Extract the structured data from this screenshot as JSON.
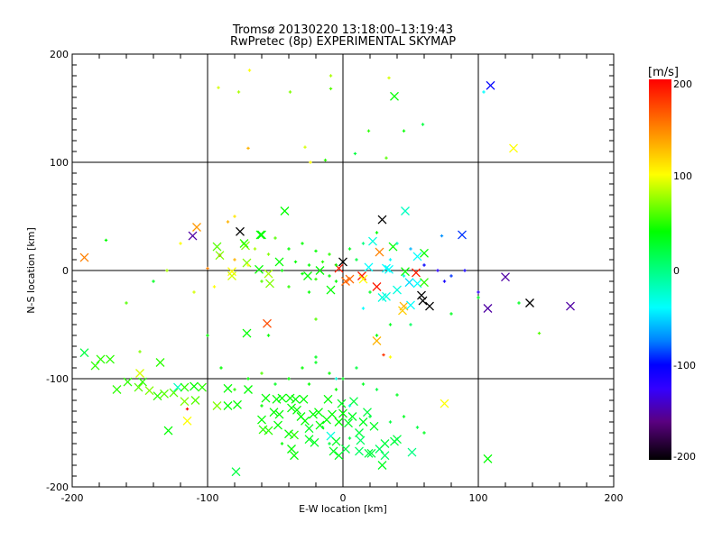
{
  "chart_data": {
    "type": "scatter",
    "title": "Tromsø 20130220 13:18:00–13:19:43",
    "subtitle": "RwPretec (8p) EXPERIMENTAL SKYMAP",
    "xlabel": "E-W location [km]",
    "ylabel": "N-S location [km]",
    "xlim": [
      -200,
      200
    ],
    "ylim": [
      -200,
      200
    ],
    "xticks": [
      "-200",
      "-100",
      "0",
      "100",
      "200"
    ],
    "yticks": [
      "-200",
      "-100",
      "0",
      "100",
      "200"
    ],
    "grid": true,
    "colorbar": {
      "label": "[m/s]",
      "range": [
        -200,
        200
      ],
      "ticks": [
        "200",
        "100",
        "0",
        "-100",
        "-200"
      ],
      "stops": [
        [
          -200,
          "#000000"
        ],
        [
          -160,
          "#5a0080"
        ],
        [
          -125,
          "#3300ff"
        ],
        [
          -100,
          "#0000ff"
        ],
        [
          -75,
          "#0080ff"
        ],
        [
          -40,
          "#00ffff"
        ],
        [
          0,
          "#00ff80"
        ],
        [
          40,
          "#00ff00"
        ],
        [
          70,
          "#80ff00"
        ],
        [
          100,
          "#ffff00"
        ],
        [
          150,
          "#ff8000"
        ],
        [
          200,
          "#ff0000"
        ]
      ]
    },
    "point_format": [
      "x_km",
      "y_km",
      "velocity_ms",
      "large_marker"
    ],
    "points": [
      [
        -191,
        12,
        150,
        1
      ],
      [
        -111,
        32,
        -150,
        1
      ],
      [
        -108,
        40,
        140,
        1
      ],
      [
        -76,
        36,
        -200,
        1
      ],
      [
        -91,
        14,
        190,
        0
      ],
      [
        -60,
        33,
        40,
        1
      ],
      [
        -43,
        55,
        40,
        1
      ],
      [
        -72,
        23,
        70,
        1
      ],
      [
        -71,
        7,
        70,
        1
      ],
      [
        -56,
        -49,
        170,
        1
      ],
      [
        -71,
        -58,
        40,
        1
      ],
      [
        29,
        47,
        -200,
        1
      ],
      [
        46,
        55,
        -20,
        1
      ],
      [
        0,
        8,
        -200,
        1
      ],
      [
        -3,
        2,
        190,
        1
      ],
      [
        5,
        -8,
        160,
        1
      ],
      [
        14,
        -5,
        190,
        1
      ],
      [
        25,
        -15,
        190,
        1
      ],
      [
        32,
        2,
        -40,
        1
      ],
      [
        55,
        13,
        -40,
        1
      ],
      [
        73,
        32,
        -70,
        0
      ],
      [
        88,
        33,
        -90,
        1
      ],
      [
        54,
        -2,
        190,
        1
      ],
      [
        55,
        -12,
        -40,
        1
      ],
      [
        58,
        -23,
        -200,
        1
      ],
      [
        59,
        -28,
        -200,
        1
      ],
      [
        64,
        -33,
        -200,
        1
      ],
      [
        45,
        -33,
        130,
        1
      ],
      [
        50,
        -32,
        -40,
        1
      ],
      [
        120,
        -6,
        -150,
        1
      ],
      [
        138,
        -30,
        -200,
        1
      ],
      [
        168,
        -33,
        -150,
        1
      ],
      [
        107,
        -35,
        -150,
        1
      ],
      [
        109,
        171,
        -100,
        1
      ],
      [
        126,
        113,
        100,
        1
      ],
      [
        38,
        161,
        40,
        1
      ],
      [
        107,
        -174,
        40,
        1
      ],
      [
        75,
        -123,
        100,
        1
      ],
      [
        25,
        -65,
        130,
        1
      ],
      [
        -61,
        33,
        40,
        1
      ],
      [
        -93,
        22,
        60,
        1
      ],
      [
        -91,
        14,
        70,
        1
      ],
      [
        -73,
        25,
        50,
        1
      ],
      [
        -62,
        1,
        40,
        1
      ],
      [
        -82,
        -1,
        100,
        1
      ],
      [
        -82,
        -5,
        90,
        1
      ],
      [
        -55,
        -3,
        80,
        1
      ],
      [
        -54,
        -12,
        70,
        1
      ],
      [
        -47,
        8,
        40,
        1
      ],
      [
        -26,
        -5,
        40,
        1
      ],
      [
        -17,
        0,
        40,
        1
      ],
      [
        -9,
        -18,
        40,
        1
      ],
      [
        2,
        -10,
        160,
        1
      ],
      [
        15,
        -8,
        100,
        1
      ],
      [
        22,
        27,
        -30,
        1
      ],
      [
        27,
        17,
        150,
        1
      ],
      [
        37,
        22,
        40,
        1
      ],
      [
        19,
        3,
        -40,
        1
      ],
      [
        34,
        1,
        -40,
        1
      ],
      [
        46,
        -1,
        40,
        1
      ],
      [
        60,
        16,
        40,
        1
      ],
      [
        49,
        -11,
        -50,
        1
      ],
      [
        60,
        -11,
        50,
        1
      ],
      [
        40,
        -18,
        -30,
        1
      ],
      [
        32,
        -24,
        -30,
        1
      ],
      [
        29,
        -25,
        -30,
        1
      ],
      [
        44,
        -37,
        120,
        1
      ],
      [
        -191,
        -76,
        20,
        1
      ],
      [
        -183,
        -88,
        50,
        1
      ],
      [
        -179,
        -82,
        50,
        1
      ],
      [
        -172,
        -82,
        50,
        1
      ],
      [
        -167,
        -110,
        50,
        1
      ],
      [
        -159,
        -103,
        50,
        1
      ],
      [
        -151,
        -108,
        60,
        1
      ],
      [
        -148,
        -103,
        50,
        1
      ],
      [
        -143,
        -111,
        70,
        1
      ],
      [
        -150,
        -95,
        90,
        1
      ],
      [
        -135,
        -85,
        50,
        1
      ],
      [
        -137,
        -116,
        50,
        1
      ],
      [
        -132,
        -114,
        60,
        1
      ],
      [
        -125,
        -113,
        60,
        1
      ],
      [
        -122,
        -108,
        -20,
        1
      ],
      [
        -117,
        -108,
        50,
        1
      ],
      [
        -110,
        -107,
        40,
        1
      ],
      [
        -104,
        -108,
        50,
        1
      ],
      [
        -117,
        -121,
        70,
        1
      ],
      [
        -109,
        -120,
        60,
        1
      ],
      [
        -115,
        -139,
        100,
        1
      ],
      [
        -129,
        -148,
        40,
        1
      ],
      [
        -93,
        -125,
        70,
        1
      ],
      [
        -85,
        -109,
        40,
        1
      ],
      [
        -85,
        -125,
        40,
        1
      ],
      [
        -78,
        -124,
        40,
        1
      ],
      [
        -79,
        -186,
        20,
        1
      ],
      [
        -70,
        -110,
        40,
        1
      ],
      [
        -60,
        -138,
        40,
        1
      ],
      [
        -59,
        -147,
        50,
        1
      ],
      [
        -55,
        -148,
        50,
        1
      ],
      [
        -48,
        -143,
        40,
        1
      ],
      [
        -47,
        -133,
        40,
        1
      ],
      [
        -51,
        -131,
        40,
        1
      ],
      [
        -40,
        -151,
        40,
        1
      ],
      [
        -36,
        -152,
        50,
        1
      ],
      [
        -38,
        -165,
        40,
        1
      ],
      [
        -36,
        -171,
        40,
        1
      ],
      [
        -57,
        -118,
        40,
        1
      ],
      [
        -49,
        -119,
        40,
        1
      ],
      [
        -39,
        -118,
        40,
        1
      ],
      [
        -35,
        -119,
        40,
        1
      ],
      [
        -29,
        -119,
        40,
        1
      ],
      [
        -34,
        -129,
        40,
        1
      ],
      [
        -28,
        -139,
        40,
        1
      ],
      [
        -25,
        -146,
        30,
        1
      ],
      [
        -22,
        -133,
        40,
        1
      ],
      [
        -18,
        -131,
        40,
        1
      ],
      [
        -12,
        -138,
        40,
        1
      ],
      [
        -8,
        -133,
        40,
        1
      ],
      [
        -17,
        -143,
        40,
        1
      ],
      [
        -25,
        -156,
        30,
        1
      ],
      [
        -21,
        -159,
        30,
        1
      ],
      [
        -9,
        -153,
        -30,
        1
      ],
      [
        -5,
        -158,
        30,
        1
      ],
      [
        -7,
        -167,
        30,
        1
      ],
      [
        -3,
        -171,
        30,
        1
      ],
      [
        -3,
        -140,
        40,
        1
      ],
      [
        0,
        -132,
        40,
        1
      ],
      [
        2,
        -165,
        20,
        1
      ],
      [
        4,
        -141,
        30,
        1
      ],
      [
        7,
        -135,
        30,
        1
      ],
      [
        12,
        -150,
        20,
        1
      ],
      [
        12,
        -167,
        10,
        1
      ],
      [
        19,
        -169,
        20,
        1
      ],
      [
        21,
        -169,
        20,
        1
      ],
      [
        23,
        -144,
        30,
        1
      ],
      [
        15,
        -140,
        30,
        1
      ],
      [
        27,
        -165,
        10,
        1
      ],
      [
        31,
        -171,
        10,
        1
      ],
      [
        31,
        -160,
        20,
        1
      ],
      [
        38,
        -158,
        20,
        1
      ],
      [
        40,
        -156,
        20,
        1
      ],
      [
        51,
        -168,
        0,
        1
      ],
      [
        29,
        -180,
        30,
        1
      ],
      [
        13,
        -157,
        10,
        1
      ],
      [
        18,
        -131,
        20,
        1
      ],
      [
        8,
        -121,
        20,
        1
      ],
      [
        -1,
        -123,
        30,
        1
      ],
      [
        -11,
        -119,
        40,
        1
      ],
      [
        -45,
        -118,
        40,
        1
      ],
      [
        -38,
        -127,
        40,
        1
      ],
      [
        -31,
        -135,
        40,
        1
      ],
      [
        -92,
        169,
        90,
        0
      ],
      [
        -77,
        165,
        80,
        0
      ],
      [
        -69,
        185,
        100,
        0
      ],
      [
        -39,
        165,
        70,
        0
      ],
      [
        -9,
        168,
        60,
        0
      ],
      [
        -9,
        180,
        80,
        0
      ],
      [
        34,
        178,
        90,
        0
      ],
      [
        19,
        129,
        50,
        0
      ],
      [
        59,
        135,
        20,
        0
      ],
      [
        45,
        129,
        40,
        0
      ],
      [
        9,
        108,
        20,
        0
      ],
      [
        -28,
        114,
        90,
        0
      ],
      [
        -70,
        113,
        130,
        0
      ],
      [
        104,
        165,
        -40,
        0
      ],
      [
        -24,
        100,
        100,
        0
      ],
      [
        -13,
        102,
        50,
        0
      ],
      [
        32,
        104,
        60,
        0
      ],
      [
        -50,
        30,
        60,
        0
      ],
      [
        -40,
        20,
        40,
        0
      ],
      [
        -30,
        25,
        40,
        0
      ],
      [
        -20,
        18,
        40,
        0
      ],
      [
        -10,
        15,
        50,
        0
      ],
      [
        -35,
        8,
        40,
        0
      ],
      [
        -25,
        5,
        40,
        0
      ],
      [
        -15,
        8,
        50,
        0
      ],
      [
        -5,
        5,
        40,
        0
      ],
      [
        -45,
        0,
        40,
        0
      ],
      [
        -30,
        -3,
        40,
        0
      ],
      [
        -20,
        -8,
        50,
        0
      ],
      [
        -10,
        -5,
        40,
        0
      ],
      [
        -55,
        15,
        70,
        0
      ],
      [
        -65,
        20,
        80,
        0
      ],
      [
        -70,
        5,
        100,
        0
      ],
      [
        -80,
        10,
        130,
        0
      ],
      [
        -95,
        -15,
        100,
        0
      ],
      [
        -100,
        2,
        150,
        0
      ],
      [
        -60,
        -10,
        60,
        0
      ],
      [
        -40,
        -15,
        50,
        0
      ],
      [
        -25,
        -20,
        40,
        0
      ],
      [
        -5,
        -10,
        40,
        0
      ],
      [
        5,
        20,
        30,
        0
      ],
      [
        10,
        10,
        20,
        0
      ],
      [
        15,
        25,
        0,
        0
      ],
      [
        20,
        -20,
        30,
        0
      ],
      [
        25,
        35,
        40,
        0
      ],
      [
        35,
        10,
        -40,
        0
      ],
      [
        40,
        25,
        -20,
        0
      ],
      [
        45,
        -5,
        -30,
        0
      ],
      [
        50,
        20,
        -60,
        0
      ],
      [
        60,
        5,
        -100,
        0
      ],
      [
        70,
        0,
        -120,
        0
      ],
      [
        75,
        -10,
        -110,
        0
      ],
      [
        80,
        -5,
        -90,
        0
      ],
      [
        90,
        0,
        -110,
        0
      ],
      [
        100,
        -20,
        -120,
        0
      ],
      [
        -120,
        25,
        100,
        0
      ],
      [
        -140,
        -10,
        30,
        0
      ],
      [
        -160,
        -30,
        60,
        0
      ],
      [
        -110,
        -20,
        90,
        0
      ],
      [
        -130,
        0,
        80,
        0
      ],
      [
        -100,
        -60,
        40,
        0
      ],
      [
        -150,
        -75,
        70,
        0
      ],
      [
        -85,
        45,
        130,
        0
      ],
      [
        -80,
        50,
        110,
        0
      ],
      [
        -55,
        -60,
        40,
        0
      ],
      [
        -20,
        -45,
        60,
        0
      ],
      [
        15,
        -35,
        -40,
        0
      ],
      [
        25,
        -60,
        40,
        0
      ],
      [
        35,
        -50,
        30,
        0
      ],
      [
        50,
        -50,
        10,
        0
      ],
      [
        80,
        -40,
        30,
        0
      ],
      [
        100,
        -25,
        30,
        0
      ],
      [
        130,
        -30,
        30,
        0
      ],
      [
        145,
        -58,
        60,
        0
      ],
      [
        -115,
        -128,
        200,
        0
      ],
      [
        30,
        -78,
        180,
        0
      ],
      [
        -175,
        28,
        40,
        0
      ],
      [
        -30,
        -90,
        40,
        0
      ],
      [
        -20,
        -85,
        30,
        0
      ],
      [
        -10,
        -95,
        40,
        0
      ],
      [
        0,
        -100,
        30,
        0
      ],
      [
        10,
        -90,
        20,
        0
      ],
      [
        -40,
        -100,
        40,
        0
      ],
      [
        -50,
        -105,
        30,
        0
      ],
      [
        -25,
        -105,
        40,
        0
      ],
      [
        -5,
        -110,
        40,
        0
      ],
      [
        15,
        -105,
        30,
        0
      ],
      [
        25,
        -110,
        20,
        0
      ],
      [
        40,
        -115,
        30,
        0
      ],
      [
        -60,
        -95,
        60,
        0
      ],
      [
        -70,
        -100,
        40,
        0
      ],
      [
        -80,
        -110,
        50,
        0
      ],
      [
        -90,
        -90,
        40,
        0
      ],
      [
        20,
        -135,
        20,
        0
      ],
      [
        35,
        -140,
        20,
        0
      ],
      [
        45,
        -135,
        30,
        0
      ],
      [
        55,
        -145,
        20,
        0
      ],
      [
        60,
        -150,
        30,
        0
      ],
      [
        -15,
        -145,
        30,
        0
      ],
      [
        -10,
        -160,
        20,
        0
      ],
      [
        5,
        -155,
        20,
        0
      ],
      [
        -45,
        -160,
        40,
        0
      ],
      [
        -60,
        -125,
        40,
        0
      ],
      [
        5,
        -125,
        -30,
        0
      ],
      [
        -5,
        -100,
        -30,
        0
      ],
      [
        35,
        -80,
        100,
        0
      ],
      [
        -20,
        -80,
        30,
        0
      ]
    ]
  }
}
